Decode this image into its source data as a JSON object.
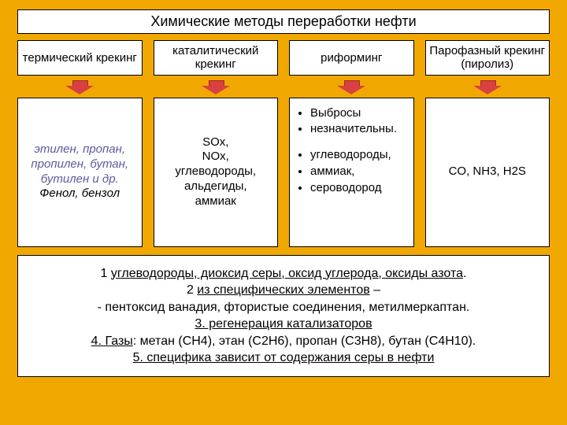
{
  "colors": {
    "slide_bg": "#f0a800",
    "arrow_fill": "#d94040",
    "arrow_border": "#9e2a2a",
    "italic_text": "#5a5aa0"
  },
  "title": "Химические методы переработки нефти",
  "methods": [
    {
      "label": "термический крекинг"
    },
    {
      "label": "каталитический крекинг"
    },
    {
      "label": "риформинг"
    },
    {
      "label": "Парофазный крекинг (пиролиз)"
    }
  ],
  "bodies": {
    "col1": {
      "italic_line": "этилен, пропан, пропилен, бутан, бутилен и др.",
      "plain_line": "Фенол, бензол"
    },
    "col2": {
      "text": "SOx,\nNOx,\nуглеводороды,\nальдегиды,\nаммиак"
    },
    "col3": {
      "items": [
        "Выбросы",
        "незначительны.",
        "",
        "углеводороды,",
        "аммиак,",
        "сероводород"
      ]
    },
    "col4": {
      "text": "CO, NH3, H2S"
    }
  },
  "footer": {
    "line1_pre": "1 ",
    "line1_u": "углеводороды, диоксид серы, оксид углерода, оксиды азота",
    "line1_post": ".",
    "line2_pre": "2 ",
    "line2_u": "из специфических элементов",
    "line2_post": " –",
    "line3": "- пентоксид ванадия, фтористые соединения, метилмеркаптан.",
    "line4_u": "3.  регенерация катализаторов",
    "line5_u_a": "4. Газы",
    "line5_rest": ": метан (СН4), этан (С2Н6), пропан (С3Н8), бутан (С4Н10).",
    "line6_u": "5. специфика зависит от содержания серы в нефти"
  }
}
